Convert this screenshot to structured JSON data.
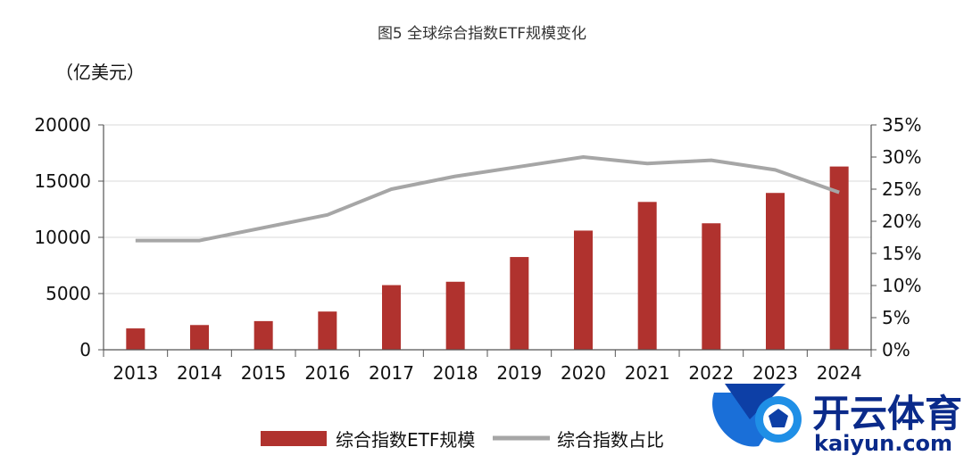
{
  "chart_data": {
    "type": "bar",
    "title": "图5 全球综合指数ETF规模变化",
    "y_unit_label": "（亿美元）",
    "categories": [
      "2013",
      "2014",
      "2015",
      "2016",
      "2017",
      "2018",
      "2019",
      "2020",
      "2021",
      "2022",
      "2023",
      "2024"
    ],
    "series": [
      {
        "name": "综合指数ETF规模",
        "type": "bar",
        "axis": "left",
        "color": "#b0322e",
        "values": [
          1900,
          2200,
          2550,
          3400,
          5750,
          6050,
          8250,
          10600,
          13150,
          11250,
          13950,
          16300
        ]
      },
      {
        "name": "综合指数占比",
        "type": "line",
        "axis": "right",
        "color": "#a6a6a6",
        "values": [
          0.17,
          0.17,
          0.19,
          0.21,
          0.25,
          0.27,
          0.285,
          0.3,
          0.29,
          0.295,
          0.28,
          0.245
        ]
      }
    ],
    "y_left": {
      "min": 0,
      "max": 20000,
      "ticks": [
        "0",
        "5000",
        "10000",
        "15000",
        "20000"
      ]
    },
    "y_right": {
      "min": 0,
      "max": 0.35,
      "ticks": [
        "0%",
        "5%",
        "10%",
        "15%",
        "20%",
        "25%",
        "30%",
        "35%"
      ]
    },
    "grid": true,
    "legend_position": "bottom"
  },
  "watermark": {
    "brand_cn": "开云体育",
    "brand_en": "kaiyun.com"
  }
}
